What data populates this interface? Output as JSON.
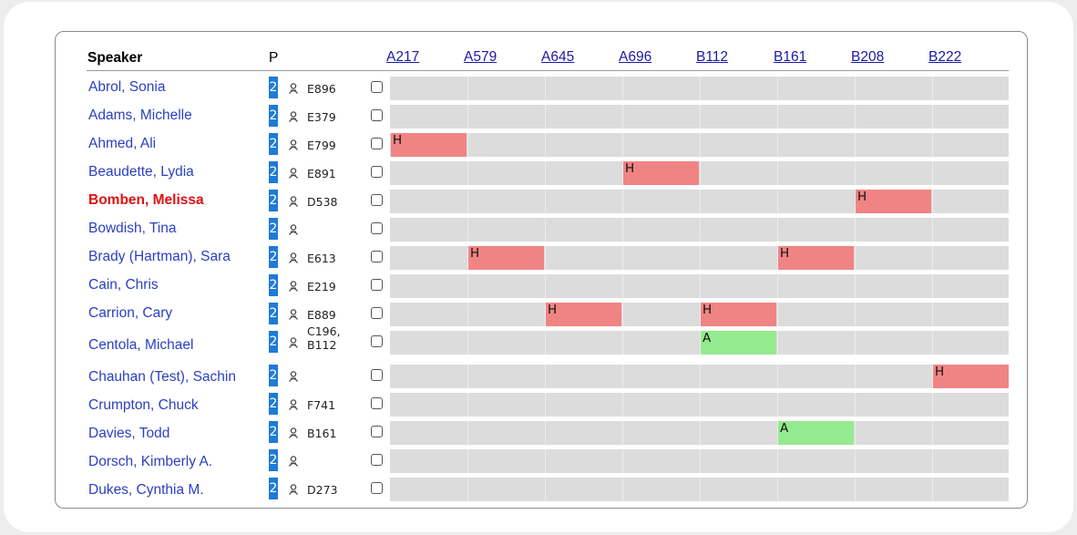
{
  "header": {
    "speaker_label": "Speaker",
    "p_label": "P"
  },
  "columns": [
    "A217",
    "A579",
    "A645",
    "A696",
    "B112",
    "B161",
    "B208",
    "B222"
  ],
  "speakers": [
    {
      "name": "Abrol, Sonia",
      "badge": "2",
      "room": "E896",
      "blocks": []
    },
    {
      "name": "Adams, Michelle",
      "badge": "2",
      "room": "E379",
      "blocks": []
    },
    {
      "name": "Ahmed, Ali",
      "badge": "2",
      "room": "E799",
      "blocks": [
        {
          "col": 0,
          "label": "H"
        }
      ]
    },
    {
      "name": "Beaudette, Lydia",
      "badge": "2",
      "room": "E891",
      "blocks": [
        {
          "col": 3,
          "label": "H"
        }
      ]
    },
    {
      "name": "Bomben, Melissa",
      "badge": "2",
      "room": "D538",
      "highlight": true,
      "blocks": [
        {
          "col": 6,
          "label": "H"
        }
      ]
    },
    {
      "name": "Bowdish, Tina",
      "badge": "2",
      "room": "",
      "blocks": []
    },
    {
      "name": "Brady (Hartman), Sara",
      "badge": "2",
      "room": "E613",
      "blocks": [
        {
          "col": 1,
          "label": "H"
        },
        {
          "col": 5,
          "label": "H"
        }
      ]
    },
    {
      "name": "Cain, Chris",
      "badge": "2",
      "room": "E219",
      "blocks": []
    },
    {
      "name": "Carrion, Cary",
      "badge": "2",
      "room": "E889",
      "blocks": [
        {
          "col": 2,
          "label": "H"
        },
        {
          "col": 4,
          "label": "H"
        }
      ]
    },
    {
      "name": "Centola, Michael",
      "badge": "2",
      "room": "C196,",
      "room2": "B112",
      "blocks": [
        {
          "col": 4,
          "label": "A"
        }
      ]
    },
    {
      "name": "Chauhan (Test), Sachin",
      "badge": "2",
      "room": "",
      "blocks": [
        {
          "col": 7,
          "label": "H"
        }
      ]
    },
    {
      "name": "Crumpton, Chuck",
      "badge": "2",
      "room": "F741",
      "blocks": []
    },
    {
      "name": "Davies, Todd",
      "badge": "2",
      "room": "B161",
      "blocks": [
        {
          "col": 5,
          "label": "A"
        }
      ]
    },
    {
      "name": "Dorsch, Kimberly A.",
      "badge": "2",
      "room": "",
      "blocks": []
    },
    {
      "name": "Dukes, Cynthia M.",
      "badge": "2",
      "room": "D273",
      "blocks": []
    }
  ],
  "colors": {
    "hold": "#f08484",
    "approved": "#94ea8e",
    "track": "#dcdcdc",
    "badge": "#1e7bd6"
  },
  "icons": {
    "person": "user-icon"
  }
}
